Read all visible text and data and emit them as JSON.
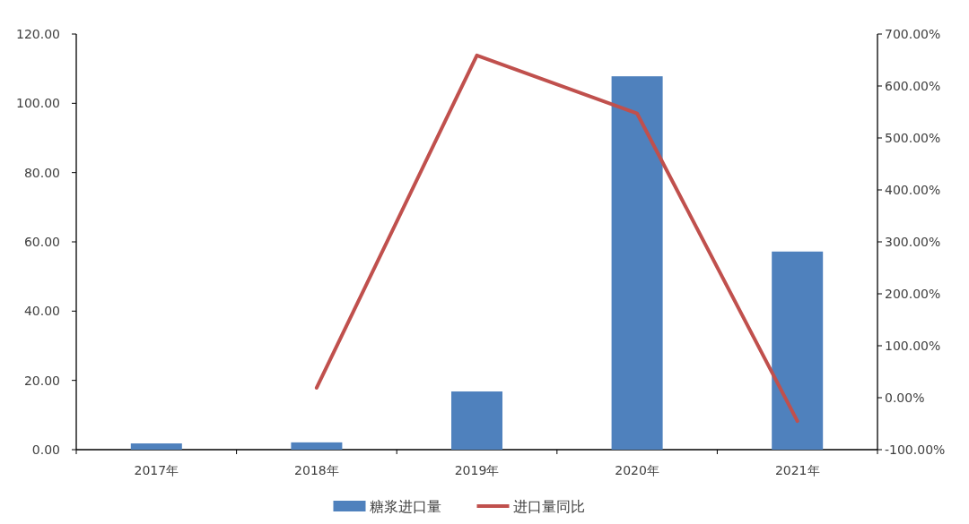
{
  "chart_data": {
    "type": "bar",
    "categories": [
      "2017年",
      "2018年",
      "2019年",
      "2020年",
      "2021年"
    ],
    "series": [
      {
        "name": "糖浆进口量",
        "color": "#4f81bd",
        "values": [
          1.8,
          2.1,
          16.8,
          107.8,
          57.2
        ]
      },
      {
        "name": "进口量同比",
        "type": "line",
        "axis": "y2",
        "color": "#c0504d",
        "values": [
          null,
          19,
          659,
          547,
          -45
        ]
      }
    ],
    "ylim": [
      0,
      120
    ],
    "yticks": [
      {
        "value": 0,
        "label": "0.00"
      },
      {
        "value": 20,
        "label": "20.00"
      },
      {
        "value": 40,
        "label": "40.00"
      },
      {
        "value": 60,
        "label": "60.00"
      },
      {
        "value": 80,
        "label": "80.00"
      },
      {
        "value": 100,
        "label": "100.00"
      },
      {
        "value": 120,
        "label": "120.00"
      }
    ],
    "y2lim": [
      -100,
      700
    ],
    "y2ticks": [
      {
        "value": -100,
        "label": "-100.00%"
      },
      {
        "value": 0,
        "label": "0.00%"
      },
      {
        "value": 100,
        "label": "100.00%"
      },
      {
        "value": 200,
        "label": "200.00%"
      },
      {
        "value": 300,
        "label": "300.00%"
      },
      {
        "value": 400,
        "label": "400.00%"
      },
      {
        "value": 500,
        "label": "500.00%"
      },
      {
        "value": 600,
        "label": "600.00%"
      },
      {
        "value": 700,
        "label": "700.00%"
      }
    ],
    "legend": "bottom",
    "grid": false
  }
}
